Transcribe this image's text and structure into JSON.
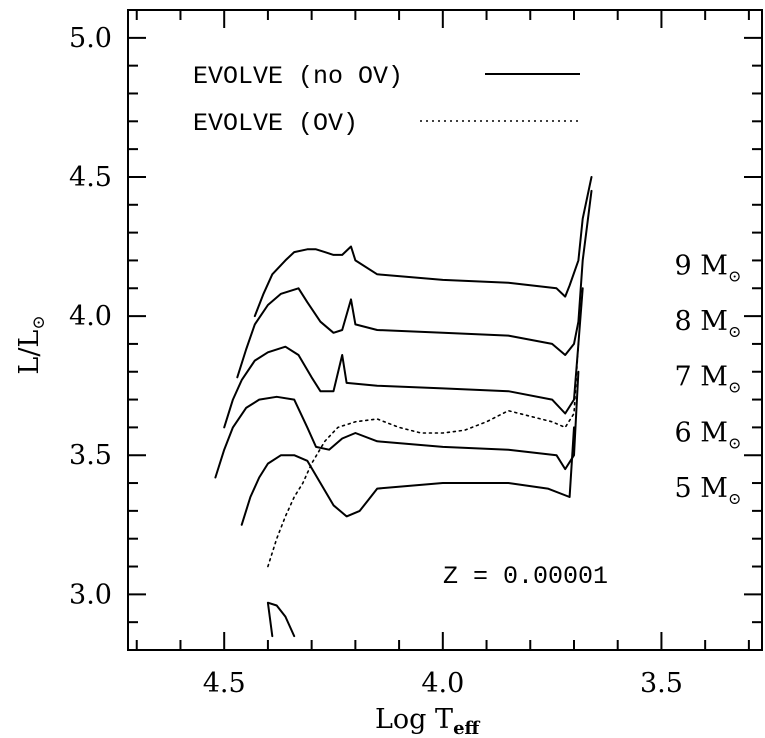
{
  "chart_data": {
    "type": "line",
    "title": "",
    "xlabel": "Log T",
    "xlabel_sub": "eff",
    "ylabel": "L/L",
    "ylabel_sub": "⊙",
    "xlim": [
      4.72,
      3.27
    ],
    "ylim": [
      2.8,
      5.1
    ],
    "x_reversed": true,
    "x_ticks": [
      {
        "value": 4.5,
        "label": "4.5"
      },
      {
        "value": 4.0,
        "label": "4.0"
      },
      {
        "value": 3.5,
        "label": "3.5"
      }
    ],
    "y_ticks": [
      {
        "value": 3.0,
        "label": "3.0"
      },
      {
        "value": 3.5,
        "label": "3.5"
      },
      {
        "value": 4.0,
        "label": "4.0"
      },
      {
        "value": 4.5,
        "label": "4.5"
      },
      {
        "value": 5.0,
        "label": "5.0"
      }
    ],
    "legend": {
      "placement": "top-left",
      "entries": [
        {
          "label": "EVOLVE (no OV)",
          "style": "solid"
        },
        {
          "label": "EVOLVE (OV)",
          "style": "dotted"
        }
      ]
    },
    "annotation": "Z = 0.00001",
    "mass_labels": [
      {
        "num": "9",
        "unit": "M",
        "sub": "⊙",
        "x": 3.47,
        "y": 4.15
      },
      {
        "num": "8",
        "unit": "M",
        "sub": "⊙",
        "x": 3.47,
        "y": 3.95
      },
      {
        "num": "7",
        "unit": "M",
        "sub": "⊙",
        "x": 3.47,
        "y": 3.75
      },
      {
        "num": "6",
        "unit": "M",
        "sub": "⊙",
        "x": 3.47,
        "y": 3.55
      },
      {
        "num": "5",
        "unit": "M",
        "sub": "⊙",
        "x": 3.47,
        "y": 3.35
      }
    ],
    "series": [
      {
        "style": "solid",
        "x": [
          4.43,
          4.41,
          4.39,
          4.36,
          4.34,
          4.31,
          4.29,
          4.27,
          4.25,
          4.23,
          4.21,
          4.2,
          4.15,
          4.0,
          3.85,
          3.74,
          3.72,
          3.71,
          3.69,
          3.68,
          3.66
        ],
        "y": [
          4.0,
          4.08,
          4.15,
          4.2,
          4.23,
          4.24,
          4.24,
          4.23,
          4.22,
          4.22,
          4.25,
          4.2,
          4.15,
          4.13,
          4.12,
          4.1,
          4.07,
          4.11,
          4.2,
          4.35,
          4.5
        ]
      },
      {
        "style": "solid",
        "x": [
          4.47,
          4.45,
          4.43,
          4.4,
          4.37,
          4.33,
          4.31,
          4.28,
          4.25,
          4.23,
          4.21,
          4.2,
          4.15,
          4.0,
          3.85,
          3.75,
          3.72,
          3.7,
          3.69,
          3.68,
          3.66
        ],
        "y": [
          3.78,
          3.88,
          3.97,
          4.04,
          4.08,
          4.1,
          4.05,
          3.98,
          3.94,
          3.95,
          4.06,
          3.97,
          3.95,
          3.94,
          3.93,
          3.9,
          3.86,
          3.9,
          3.98,
          4.2,
          4.45
        ]
      },
      {
        "style": "solid",
        "x": [
          4.5,
          4.48,
          4.46,
          4.43,
          4.4,
          4.36,
          4.33,
          4.3,
          4.28,
          4.25,
          4.23,
          4.22,
          4.15,
          4.0,
          3.85,
          3.75,
          3.72,
          3.7,
          3.69,
          3.68
        ],
        "y": [
          3.6,
          3.7,
          3.77,
          3.84,
          3.87,
          3.89,
          3.86,
          3.78,
          3.73,
          3.73,
          3.86,
          3.76,
          3.75,
          3.74,
          3.73,
          3.7,
          3.65,
          3.7,
          3.9,
          4.1
        ]
      },
      {
        "style": "solid",
        "x": [
          4.52,
          4.5,
          4.48,
          4.45,
          4.42,
          4.38,
          4.34,
          4.31,
          4.29,
          4.26,
          4.23,
          4.2,
          4.15,
          4.0,
          3.85,
          3.74,
          3.72,
          3.7,
          3.69
        ],
        "y": [
          3.42,
          3.52,
          3.6,
          3.67,
          3.7,
          3.71,
          3.7,
          3.6,
          3.53,
          3.52,
          3.56,
          3.58,
          3.55,
          3.53,
          3.52,
          3.5,
          3.45,
          3.5,
          3.8
        ]
      },
      {
        "style": "solid",
        "x": [
          4.46,
          4.44,
          4.42,
          4.4,
          4.37,
          4.34,
          4.31,
          4.28,
          4.25,
          4.22,
          4.19,
          4.17,
          4.15,
          4.0,
          3.85,
          3.76,
          3.71,
          3.7
        ],
        "y": [
          3.25,
          3.35,
          3.42,
          3.47,
          3.5,
          3.5,
          3.48,
          3.4,
          3.32,
          3.28,
          3.3,
          3.34,
          3.38,
          3.4,
          3.4,
          3.38,
          3.35,
          3.6
        ]
      },
      {
        "style": "solid",
        "x": [
          4.39,
          4.4,
          4.38,
          4.36,
          4.34
        ],
        "y": [
          2.85,
          2.97,
          2.96,
          2.92,
          2.85
        ]
      },
      {
        "style": "dotted",
        "x": [
          4.4,
          4.38,
          4.36,
          4.34,
          4.32,
          4.3,
          4.27,
          4.24,
          4.2,
          4.15,
          4.1,
          4.05,
          4.0,
          3.95,
          3.9,
          3.85,
          3.8,
          3.75,
          3.72,
          3.7,
          3.69
        ],
        "y": [
          3.1,
          3.2,
          3.28,
          3.35,
          3.4,
          3.47,
          3.55,
          3.6,
          3.62,
          3.63,
          3.6,
          3.58,
          3.58,
          3.59,
          3.62,
          3.66,
          3.64,
          3.62,
          3.6,
          3.65,
          3.9
        ]
      }
    ]
  }
}
